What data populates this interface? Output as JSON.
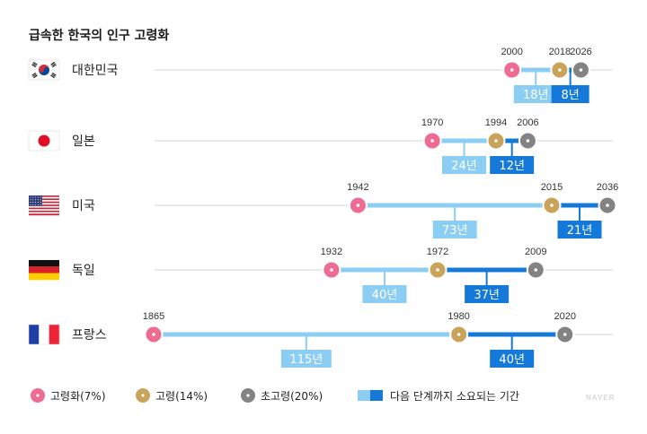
{
  "colors": {
    "aging": "#ee6b91",
    "aged": "#c9a35a",
    "super_aged": "#838383",
    "period_light": "#8ccdf3",
    "period_dark": "#1479d8",
    "baseline": "#e3e3e3"
  },
  "watermark": "NAVER",
  "chart_data": {
    "type": "timeline",
    "title": "급속한 한국의 인구 고령화",
    "countries": [
      {
        "name": "대한민국",
        "flag": "korea-flag",
        "aging": 2000,
        "aged": 2018,
        "super_aged": 2026,
        "aging_to_aged": "18년",
        "aged_to_super_aged": "8년"
      },
      {
        "name": "일본",
        "flag": "japan-flag",
        "aging": 1970,
        "aged": 1994,
        "super_aged": 2006,
        "aging_to_aged": "24년",
        "aged_to_super_aged": "12년"
      },
      {
        "name": "미국",
        "flag": "usa-flag",
        "aging": 1942,
        "aged": 2015,
        "super_aged": 2036,
        "aging_to_aged": "73년",
        "aged_to_super_aged": "21년"
      },
      {
        "name": "독일",
        "flag": "germany-flag",
        "aging": 1932,
        "aged": 1972,
        "super_aged": 2009,
        "aging_to_aged": "40년",
        "aged_to_super_aged": "37년"
      },
      {
        "name": "프랑스",
        "flag": "france-flag",
        "aging": 1865,
        "aged": 1980,
        "super_aged": 2020,
        "aging_to_aged": "115년",
        "aged_to_super_aged": "40년"
      }
    ],
    "legend": [
      {
        "key": "aging",
        "label": "고령화(7%)"
      },
      {
        "key": "aged",
        "label": "고령(14%)"
      },
      {
        "key": "super_aged",
        "label": "초고령(20%)"
      },
      {
        "key": "period",
        "label": "다음 단계까지 소요되는 기간"
      }
    ]
  }
}
